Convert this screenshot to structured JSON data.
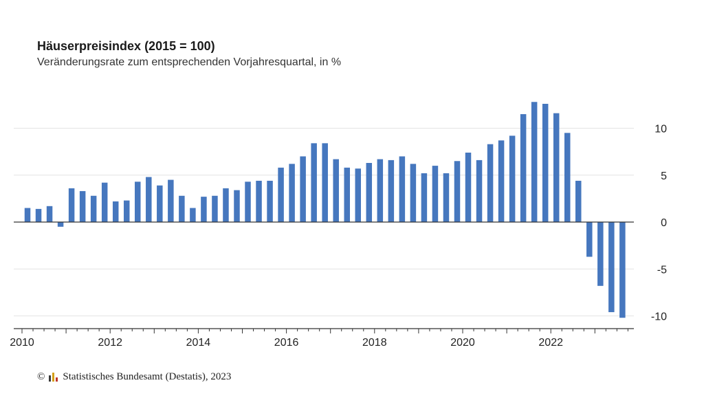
{
  "title": "Häuserpreisindex (2015 = 100)",
  "subtitle": "Veränderungsrate zum entsprechenden Vorjahresquartal, in %",
  "source": {
    "copyright_symbol": "©",
    "text": "Statistisches Bundesamt (Destatis), 2023",
    "logo_icon": "destatis-logo-icon"
  },
  "chart_data": {
    "type": "bar",
    "title": "Häuserpreisindex (2015 = 100)",
    "subtitle": "Veränderungsrate zum entsprechenden Vorjahresquartal, in %",
    "bar_color": "#4677be",
    "ylim": [
      -11,
      14
    ],
    "yticks": [
      -10,
      -5,
      0,
      5,
      10
    ],
    "ytick_labels": [
      "-10",
      "-5",
      "0",
      "5",
      "10"
    ],
    "y_axis_position": "right",
    "grid": true,
    "xlim": [
      2010,
      2024.25
    ],
    "xticks": [
      2010,
      2012,
      2014,
      2016,
      2018,
      2020,
      2022
    ],
    "xtick_labels": [
      "2010",
      "2012",
      "2014",
      "2016",
      "2018",
      "2020",
      "2022"
    ],
    "categories": [
      "2010 Q1",
      "2010 Q2",
      "2010 Q3",
      "2010 Q4",
      "2011 Q1",
      "2011 Q2",
      "2011 Q3",
      "2011 Q4",
      "2012 Q1",
      "2012 Q2",
      "2012 Q3",
      "2012 Q4",
      "2013 Q1",
      "2013 Q2",
      "2013 Q3",
      "2013 Q4",
      "2014 Q1",
      "2014 Q2",
      "2014 Q3",
      "2014 Q4",
      "2015 Q1",
      "2015 Q2",
      "2015 Q3",
      "2015 Q4",
      "2016 Q1",
      "2016 Q2",
      "2016 Q3",
      "2016 Q4",
      "2017 Q1",
      "2017 Q2",
      "2017 Q3",
      "2017 Q4",
      "2018 Q1",
      "2018 Q2",
      "2018 Q3",
      "2018 Q4",
      "2019 Q1",
      "2019 Q2",
      "2019 Q3",
      "2019 Q4",
      "2020 Q1",
      "2020 Q2",
      "2020 Q3",
      "2020 Q4",
      "2021 Q1",
      "2021 Q2",
      "2021 Q3",
      "2021 Q4",
      "2022 Q1",
      "2022 Q2",
      "2022 Q3",
      "2022 Q4",
      "2023 Q1",
      "2023 Q2",
      "2023 Q3"
    ],
    "values": [
      1.5,
      1.4,
      1.7,
      -0.5,
      3.6,
      3.3,
      2.8,
      4.2,
      2.2,
      2.3,
      4.3,
      4.8,
      3.9,
      4.5,
      2.8,
      1.5,
      2.7,
      2.8,
      3.6,
      3.4,
      4.3,
      4.4,
      4.4,
      5.8,
      6.2,
      7.0,
      8.4,
      8.4,
      6.7,
      5.8,
      5.7,
      6.3,
      6.7,
      6.6,
      7.0,
      6.2,
      5.2,
      6.0,
      5.2,
      6.5,
      7.4,
      6.6,
      8.3,
      8.7,
      9.2,
      11.5,
      12.8,
      12.6,
      11.6,
      9.5,
      4.4,
      -3.7,
      -6.8,
      -9.6,
      -10.2
    ]
  }
}
